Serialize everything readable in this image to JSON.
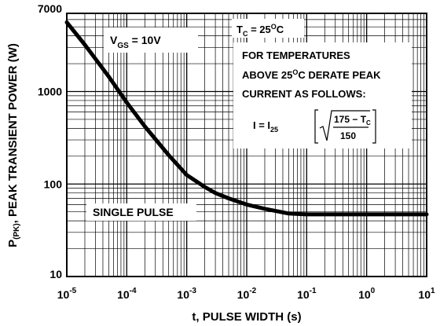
{
  "chart_data": {
    "type": "line",
    "xscale": "log",
    "yscale": "log",
    "xlim": [
      1e-05,
      10
    ],
    "ylim": [
      10,
      7000
    ],
    "xlabel": "t, PULSE WIDTH (s)",
    "ylabel": {
      "prefix": "P",
      "subscript": "(PK)",
      "suffix": ", PEAK TRANSIENT POWER (W)"
    },
    "x_ticks": [
      {
        "base": "10",
        "exp": "-5"
      },
      {
        "base": "10",
        "exp": "-4"
      },
      {
        "base": "10",
        "exp": "-3"
      },
      {
        "base": "10",
        "exp": "-2"
      },
      {
        "base": "10",
        "exp": "-1"
      },
      {
        "base": "10",
        "exp": "0"
      },
      {
        "base": "10",
        "exp": "1"
      }
    ],
    "y_ticks": [
      "10",
      "100",
      "1000",
      "7000"
    ],
    "grid": true,
    "series": [
      {
        "x": [
          1e-05,
          2e-05,
          5e-05,
          0.0001,
          0.0002,
          0.0005,
          0.001,
          0.002,
          0.003,
          0.005,
          0.01,
          0.02,
          0.05,
          0.1,
          0.2,
          0.5,
          1,
          2,
          5,
          10
        ],
        "y": [
          5600,
          3200,
          1450,
          760,
          420,
          205,
          125,
          93,
          80,
          70,
          60,
          54,
          48,
          47,
          47,
          47,
          47,
          47,
          47,
          47
        ]
      }
    ],
    "annotations": {
      "vgs": {
        "main": "V",
        "sub": "GS",
        "rest": " = 10V"
      },
      "tc": {
        "main": "T",
        "sub": "C",
        "rest": " = 25",
        "sup": "O",
        "unit": "C"
      },
      "derate_line1": "FOR TEMPERATURES",
      "derate_line2": {
        "pre": "ABOVE 25",
        "sup": "O",
        "post": "C DERATE PEAK"
      },
      "derate_line3": "CURRENT AS FOLLOWS:",
      "formula": {
        "lhs": "I = I",
        "lhs_sub": "25",
        "numerator": "175 − T",
        "numerator_sub": "C",
        "denominator": "150"
      },
      "single_pulse": "SINGLE PULSE"
    }
  }
}
